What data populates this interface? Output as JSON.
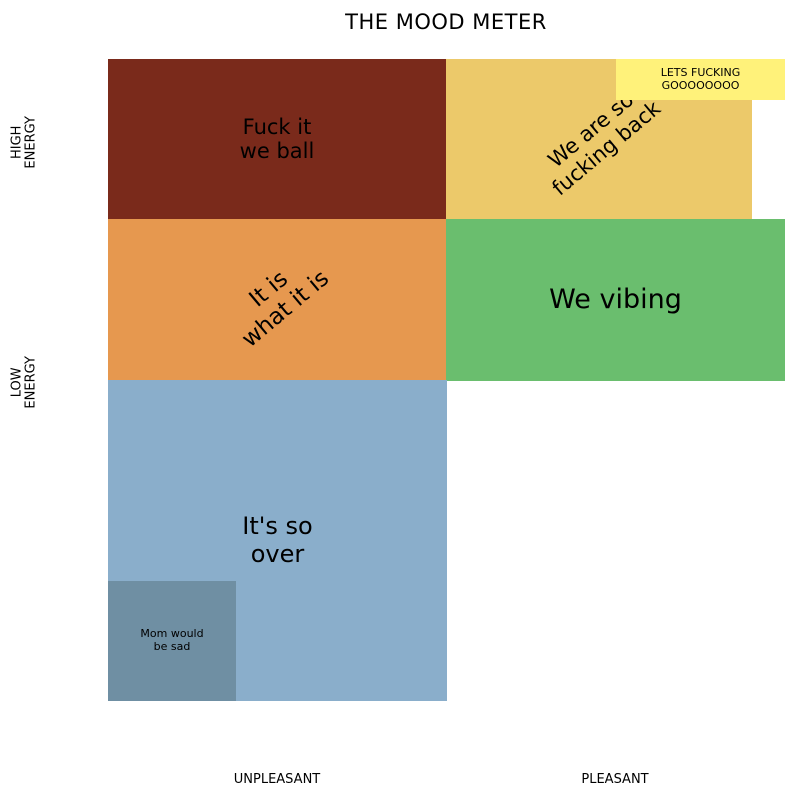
{
  "title": "THE MOOD METER",
  "axes": {
    "y_top": "HIGH\nENERGY",
    "y_bottom": "LOW\nENERGY",
    "x_left": "UNPLEASANT",
    "x_right": "PLEASANT"
  },
  "cells": {
    "high_unpleasant": {
      "label": "Fuck it\nwe ball",
      "color": "#7a2a1b"
    },
    "high_pleasant": {
      "label": "We are so\nfucking back",
      "color": "#ecc96a"
    },
    "high_pleasant_peak": {
      "label": "LETS FUCKING\nGOOOOOOOO",
      "color": "#fff27a"
    },
    "mid_unpleasant": {
      "label": "It is\nwhat it is",
      "color": "#e6984f"
    },
    "mid_pleasant": {
      "label": "We vibing",
      "color": "#6abe6e"
    },
    "low_unpleasant": {
      "label": "It's so\nover",
      "color": "#8aaecb"
    },
    "low_unpleasant_sub": {
      "label": "Mom would\nbe sad",
      "color": "#6f8fa3"
    }
  }
}
